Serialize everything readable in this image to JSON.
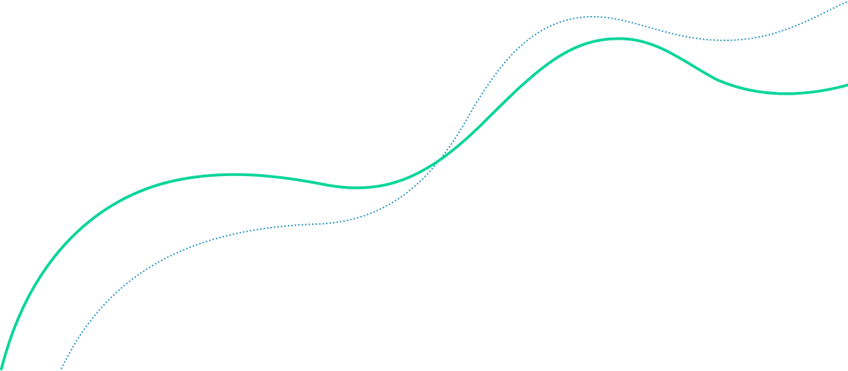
{
  "background": {
    "color": "#ffffff"
  },
  "waves": {
    "solid": {
      "name": "solid-wave",
      "color": "#0bd59a"
    },
    "dotted": {
      "name": "dotted-wave",
      "color": "#1a8fbf"
    }
  }
}
